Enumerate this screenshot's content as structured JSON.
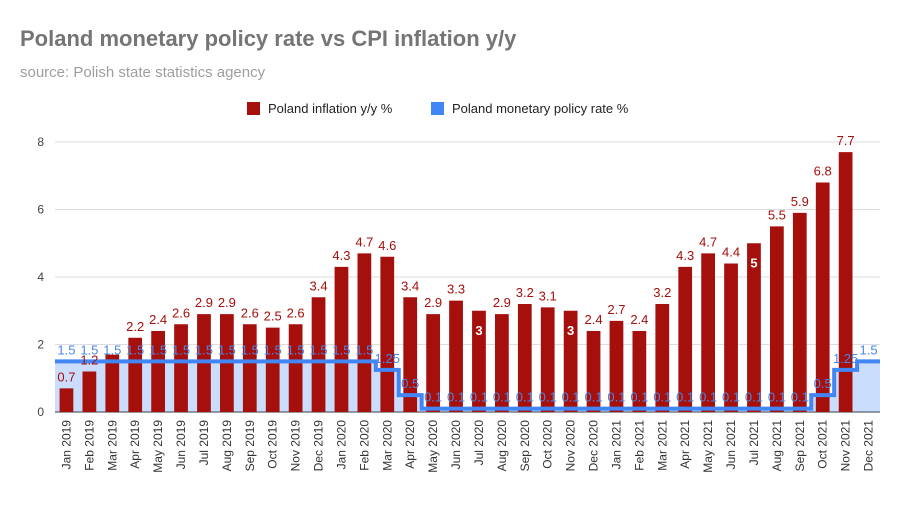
{
  "chart_data": {
    "type": "bar",
    "title": "Poland monetary policy rate vs CPI inflation y/y",
    "subtitle": "source: Polish state statistics agency",
    "xlabel": "",
    "ylabel": "",
    "ylim": [
      0,
      8
    ],
    "yticks": [
      0,
      2,
      4,
      6,
      8
    ],
    "grid": true,
    "legend_position": "top",
    "categories": [
      "Jan 2019",
      "Feb 2019",
      "Mar 2019",
      "Apr 2019",
      "May 2019",
      "Jun 2019",
      "Jul 2019",
      "Aug 2019",
      "Sep 2019",
      "Oct 2019",
      "Nov 2019",
      "Dec 2019",
      "Jan 2020",
      "Feb 2020",
      "Mar 2020",
      "Apr 2020",
      "May 2020",
      "Jun 2020",
      "Jul 2020",
      "Aug 2020",
      "Sep 2020",
      "Oct 2020",
      "Nov 2020",
      "Dec 2020",
      "Jan 2021",
      "Feb 2021",
      "Mar 2021",
      "Apr 2021",
      "May 2021",
      "Jun 2021",
      "Jul 2021",
      "Aug 2021",
      "Sep 2021",
      "Oct 2021",
      "Nov 2021",
      "Dec 2021"
    ],
    "series": [
      {
        "name": "Poland inflation y/y %",
        "kind": "bar",
        "color": "#a50f0c",
        "values": [
          0.7,
          1.2,
          1.7,
          2.2,
          2.4,
          2.6,
          2.9,
          2.9,
          2.6,
          2.5,
          2.6,
          3.4,
          4.3,
          4.7,
          4.6,
          3.4,
          2.9,
          3.3,
          3.0,
          2.9,
          3.2,
          3.1,
          3.0,
          2.4,
          2.7,
          2.4,
          3.2,
          4.3,
          4.7,
          4.4,
          5.0,
          5.5,
          5.9,
          6.8,
          7.7,
          null
        ],
        "labels": [
          "0.7",
          "1.2",
          "",
          "2.2",
          "2.4",
          "2.6",
          "2.9",
          "2.9",
          "2.6",
          "2.5",
          "2.6",
          "3.4",
          "4.3",
          "4.7",
          "4.6",
          "3.4",
          "2.9",
          "3.3",
          "3",
          "2.9",
          "3.2",
          "3.1",
          "3",
          "2.4",
          "2.7",
          "2.4",
          "3.2",
          "4.3",
          "4.7",
          "4.4",
          "5",
          "5.5",
          "5.9",
          "6.8",
          "7.7",
          ""
        ]
      },
      {
        "name": "Poland monetary policy rate %",
        "kind": "stepped-area",
        "color": "#4285f4",
        "values": [
          1.5,
          1.5,
          1.5,
          1.5,
          1.5,
          1.5,
          1.5,
          1.5,
          1.5,
          1.5,
          1.5,
          1.5,
          1.5,
          1.5,
          1.25,
          0.5,
          0.1,
          0.1,
          0.1,
          0.1,
          0.1,
          0.1,
          0.1,
          0.1,
          0.1,
          0.1,
          0.1,
          0.1,
          0.1,
          0.1,
          0.1,
          0.1,
          0.1,
          0.5,
          1.25,
          1.5
        ],
        "labels": [
          "1.5",
          "1.5",
          "1.5",
          "1.5",
          "1.5",
          "1.5",
          "1.5",
          "1.5",
          "1.5",
          "1.5",
          "1.5",
          "1.5",
          "1.5",
          "1.5",
          "1.25",
          "0.5",
          "0.1",
          "0.1",
          "0.1",
          "0.1",
          "0.1",
          "0.1",
          "0.1",
          "0.1",
          "0.1",
          "0.1",
          "0.1",
          "0.1",
          "0.1",
          "0.1",
          "0.1",
          "0.1",
          "0.1",
          "0.5",
          "1.25",
          "1.5"
        ]
      }
    ]
  }
}
